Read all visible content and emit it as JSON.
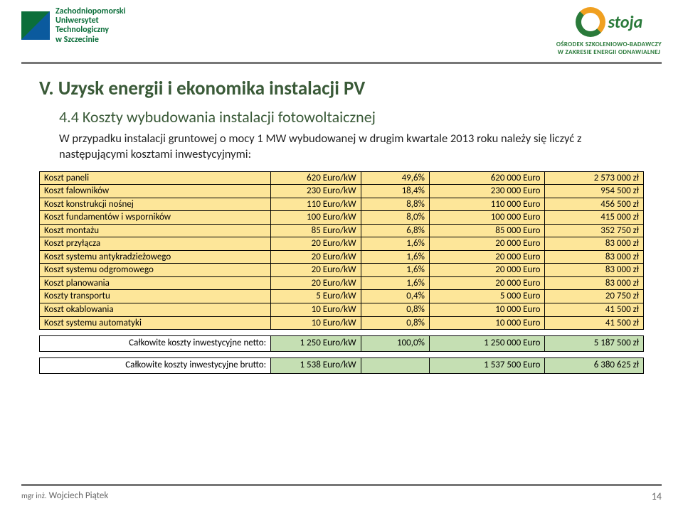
{
  "header": {
    "uni_line1": "Zachodniopomorski",
    "uni_line2": "Uniwersytet",
    "uni_line3": "Technologiczny",
    "uni_line4": "w Szczecinie",
    "ostoja_name": "stoja",
    "ostoja_sub1": "OŚRODEK SZKOLENIOWO-BADAWCZY",
    "ostoja_sub2": "W ZAKRESIE ENERGII ODNAWIALNEJ"
  },
  "title": "V. Uzysk energii i ekonomika instalacji PV",
  "section": "4.4 Koszty wybudowania instalacji fotowoltaicznej",
  "paragraph": "W przypadku instalacji gruntowej o mocy 1 MW wybudowanej w drugim kwartale 2013 roku należy się liczyć z następującymi kosztami inwestycyjnymi:",
  "colors": {
    "row_bg": "#fde699",
    "sum_bg": "#c5dfb3",
    "title_color": "#3a5a38"
  },
  "rows": [
    {
      "label": "Koszt paneli",
      "c2": "620 Euro/kW",
      "c3": "49,6%",
      "c4": "620 000 Euro",
      "c5": "2 573 000 zł"
    },
    {
      "label": "Koszt falowników",
      "c2": "230 Euro/kW",
      "c3": "18,4%",
      "c4": "230 000 Euro",
      "c5": "954 500 zł"
    },
    {
      "label": "Koszt konstrukcji nośnej",
      "c2": "110 Euro/kW",
      "c3": "8,8%",
      "c4": "110 000 Euro",
      "c5": "456 500 zł"
    },
    {
      "label": "Koszt fundamentów i wsporników",
      "c2": "100 Euro/kW",
      "c3": "8,0%",
      "c4": "100 000 Euro",
      "c5": "415 000 zł"
    },
    {
      "label": "Koszt montażu",
      "c2": "85 Euro/kW",
      "c3": "6,8%",
      "c4": "85 000 Euro",
      "c5": "352 750 zł"
    },
    {
      "label": "Koszt przyłącza",
      "c2": "20 Euro/kW",
      "c3": "1,6%",
      "c4": "20 000 Euro",
      "c5": "83 000 zł"
    },
    {
      "label": "Koszt systemu antykradzieżowego",
      "c2": "20 Euro/kW",
      "c3": "1,6%",
      "c4": "20 000 Euro",
      "c5": "83 000 zł"
    },
    {
      "label": "Koszt systemu odgromowego",
      "c2": "20 Euro/kW",
      "c3": "1,6%",
      "c4": "20 000 Euro",
      "c5": "83 000 zł"
    },
    {
      "label": "Koszt planowania",
      "c2": "20 Euro/kW",
      "c3": "1,6%",
      "c4": "20 000 Euro",
      "c5": "83 000 zł"
    },
    {
      "label": "Koszty transportu",
      "c2": "5 Euro/kW",
      "c3": "0,4%",
      "c4": "5 000 Euro",
      "c5": "20 750 zł"
    },
    {
      "label": "Koszt okablowania",
      "c2": "10 Euro/kW",
      "c3": "0,8%",
      "c4": "10 000 Euro",
      "c5": "41 500 zł"
    },
    {
      "label": "Koszt systemu automatyki",
      "c2": "10 Euro/kW",
      "c3": "0,8%",
      "c4": "10 000 Euro",
      "c5": "41 500 zł"
    }
  ],
  "sum_netto": {
    "label": "Całkowite koszty inwestycyjne netto:",
    "c2": "1 250 Euro/kW",
    "c3": "100,0%",
    "c4": "1 250 000 Euro",
    "c5": "5 187 500 zł"
  },
  "sum_brutto": {
    "label": "Całkowite koszty inwestycyjne brutto:",
    "c2": "1 538 Euro/kW",
    "c4": "1 537 500 Euro",
    "c5": "6 380 625 zł"
  },
  "footer": {
    "deg": "mgr inż.",
    "name": "Wojciech Piątek",
    "page": "14"
  }
}
